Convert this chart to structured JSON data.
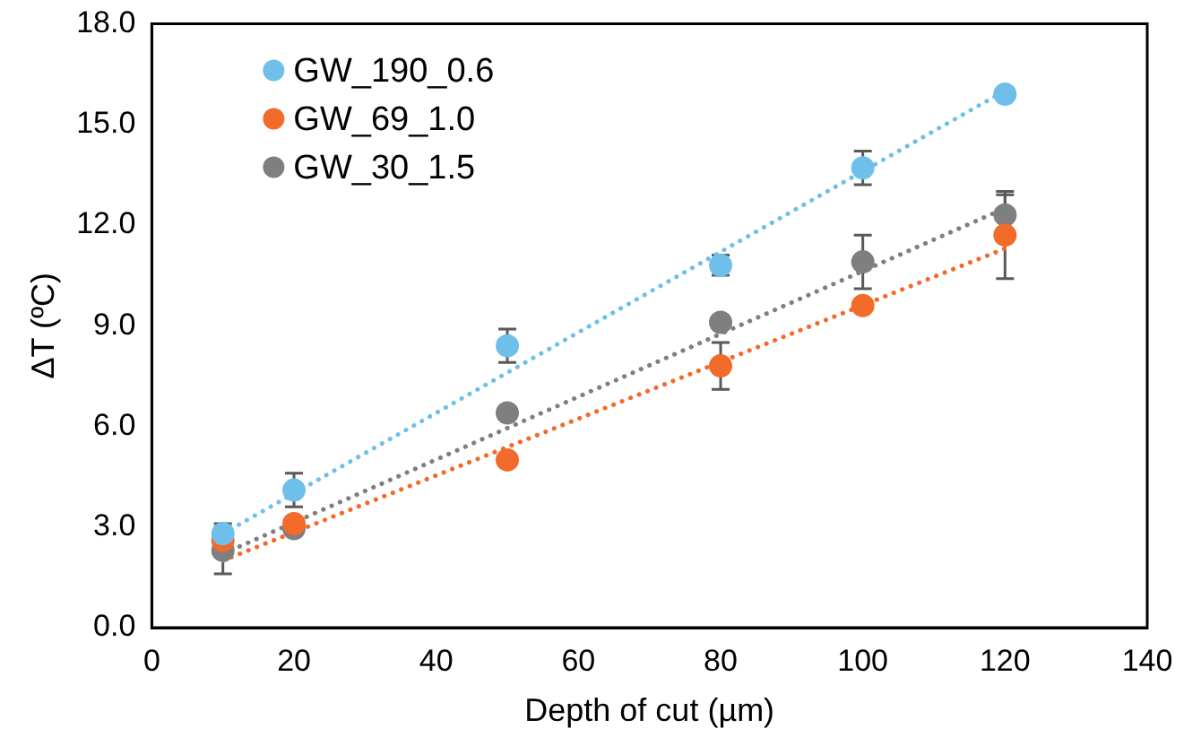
{
  "chart_data": {
    "type": "scatter",
    "xlabel": "Depth of cut (µm)",
    "ylabel": "ΔT (ºC)",
    "xlim": [
      0,
      140
    ],
    "xticks": [
      0,
      20,
      40,
      60,
      80,
      100,
      120,
      140
    ],
    "ylim": [
      0,
      18
    ],
    "yticks": [
      {
        "value": 0,
        "label": "0.0"
      },
      {
        "value": 3,
        "label": "3.0"
      },
      {
        "value": 6,
        "label": "6.0"
      },
      {
        "value": 9,
        "label": "9.0"
      },
      {
        "value": 12,
        "label": "12.0"
      },
      {
        "value": 15,
        "label": "15.0"
      },
      {
        "value": 18,
        "label": "18.0"
      }
    ],
    "grid": false,
    "legend": "top left",
    "series": [
      {
        "name": "GW_190_0.6",
        "color": "#6ec0ea",
        "x": [
          10,
          20,
          50,
          80,
          100,
          120
        ],
        "values": [
          2.8,
          4.1,
          8.4,
          10.8,
          13.7,
          15.9
        ],
        "marker": "circle",
        "errors": [
          0.3,
          0.5,
          0.5,
          0.3,
          0.5,
          null
        ]
      },
      {
        "name": "GW_69_1.0",
        "color": "#f26b2a",
        "x": [
          10,
          20,
          50,
          80,
          100,
          120
        ],
        "values": [
          2.6,
          3.1,
          5.0,
          7.8,
          9.6,
          11.7
        ],
        "marker": "circle",
        "errors": [
          null,
          null,
          null,
          0.7,
          null,
          1.3
        ]
      },
      {
        "name": "GW_30_1.5",
        "color": "#7f7f7f",
        "x": [
          10,
          20,
          50,
          80,
          100,
          120
        ],
        "values": [
          2.3,
          2.95,
          6.4,
          9.1,
          10.9,
          12.3
        ],
        "marker": "circle",
        "errors": [
          0.7,
          null,
          null,
          null,
          0.8,
          0.6
        ]
      },
      {
        "type": "line",
        "color": "#6ec0ea",
        "x": [
          10,
          120
        ],
        "values": [
          2.8,
          16.0
        ],
        "line_style": "dotted"
      },
      {
        "type": "line",
        "color": "#7f7f7f",
        "x": [
          10,
          120
        ],
        "values": [
          2.2,
          12.5
        ],
        "line_style": "dotted"
      },
      {
        "type": "line",
        "color": "#f26b2a",
        "x": [
          10,
          120
        ],
        "values": [
          2.0,
          11.3
        ],
        "line_style": "dotted"
      }
    ]
  }
}
